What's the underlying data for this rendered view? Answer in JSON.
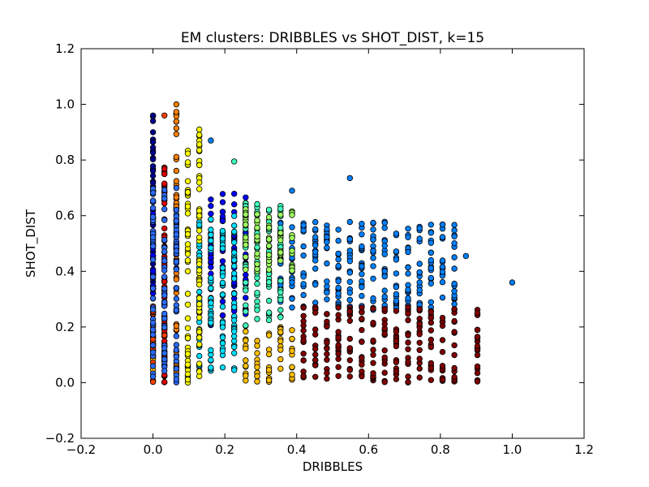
{
  "chart_data": {
    "type": "scatter",
    "title": "EM clusters: DRIBBLES vs SHOT_DIST, k=15",
    "xlabel": "DRIBBLES",
    "ylabel": "SHOT_DIST",
    "xlim": [
      -0.2,
      1.2
    ],
    "ylim": [
      -0.2,
      1.2
    ],
    "xticks": [
      "−0.2",
      "0.0",
      "0.2",
      "0.4",
      "0.6",
      "0.8",
      "1.0",
      "1.2"
    ],
    "yticks": [
      "−0.2",
      "0.0",
      "0.2",
      "0.4",
      "0.6",
      "0.8",
      "1.0",
      "1.2"
    ],
    "grid": false,
    "legend": "none",
    "cluster_colors": [
      "#00008f",
      "#0000ff",
      "#0080ff",
      "#00dfff",
      "#40ffbf",
      "#9fff60",
      "#ffff00",
      "#ffbf00",
      "#ff8000",
      "#ff4000",
      "#df0000",
      "#800000",
      "#2a6cff",
      "#a6ff59",
      "#0bbfff"
    ],
    "series": [
      {
        "cluster": 0,
        "color": "#00008f",
        "columns": [
          0.0
        ],
        "ymin": 0.22,
        "ymax": 0.96
      },
      {
        "cluster": 1,
        "color": "#0000ff",
        "columns": [
          0.0,
          0.161,
          0.194,
          0.226,
          0.258
        ],
        "ymin": 0.2,
        "ymax": 0.68
      },
      {
        "cluster": 2,
        "color": "#0080ff",
        "columns": [
          0.355,
          0.387,
          0.419,
          0.452,
          0.484,
          0.516,
          0.548,
          0.581,
          0.613,
          0.645,
          0.677,
          0.71,
          0.742,
          0.774,
          0.806,
          0.839
        ],
        "ymin": 0.26,
        "ymax": 0.58
      },
      {
        "cluster": 3,
        "color": "#00dfff",
        "columns": [
          0.129,
          0.161,
          0.194,
          0.226
        ],
        "ymin": 0.04,
        "ymax": 0.6
      },
      {
        "cluster": 4,
        "color": "#40ffbf",
        "columns": [
          0.258,
          0.29,
          0.323,
          0.355
        ],
        "ymin": 0.2,
        "ymax": 0.65
      },
      {
        "cluster": 5,
        "color": "#9fff60",
        "columns": [
          0.258,
          0.29,
          0.323,
          0.355,
          0.387
        ],
        "ymin": 0.4,
        "ymax": 0.63
      },
      {
        "cluster": 6,
        "color": "#ffff00",
        "columns": [
          0.097,
          0.129
        ],
        "ymin": 0.0,
        "ymax": 0.93
      },
      {
        "cluster": 7,
        "color": "#ffbf00",
        "columns": [
          0.0,
          0.258,
          0.29,
          0.323,
          0.355,
          0.387
        ],
        "ymin": 0.0,
        "ymax": 0.2
      },
      {
        "cluster": 8,
        "color": "#ff8000",
        "columns": [
          0.065
        ],
        "ymin": 0.0,
        "ymax": 1.0
      },
      {
        "cluster": 9,
        "color": "#ff4000",
        "columns": [
          0.0,
          0.032
        ],
        "ymin": 0.0,
        "ymax": 0.3
      },
      {
        "cluster": 10,
        "color": "#df0000",
        "columns": [
          0.032
        ],
        "ymin": 0.0,
        "ymax": 0.83
      },
      {
        "cluster": 11,
        "color": "#800000",
        "columns": [
          0.419,
          0.452,
          0.484,
          0.516,
          0.548,
          0.581,
          0.613,
          0.645,
          0.677,
          0.71,
          0.742,
          0.774,
          0.806,
          0.839,
          0.903
        ],
        "ymin": 0.0,
        "ymax": 0.28
      },
      {
        "cluster": 12,
        "color": "#2a6cff",
        "columns": [
          0.0,
          0.032,
          0.065
        ],
        "ymin": 0.0,
        "ymax": 0.7
      }
    ],
    "outliers": [
      {
        "x": 0.0,
        "y": 0.96,
        "color": "#00008f"
      },
      {
        "x": 0.032,
        "y": 0.96,
        "color": "#ff4000"
      },
      {
        "x": 0.065,
        "y": 1.0,
        "color": "#ff8000"
      },
      {
        "x": 0.161,
        "y": 0.87,
        "color": "#0080ff"
      },
      {
        "x": 0.226,
        "y": 0.795,
        "color": "#40ffbf"
      },
      {
        "x": 0.548,
        "y": 0.735,
        "color": "#0080ff"
      },
      {
        "x": 0.387,
        "y": 0.69,
        "color": "#0080ff"
      },
      {
        "x": 0.871,
        "y": 0.455,
        "color": "#0080ff"
      },
      {
        "x": 1.0,
        "y": 0.36,
        "color": "#0080ff"
      },
      {
        "x": 0.903,
        "y": 0.25,
        "color": "#800000"
      },
      {
        "x": 0.903,
        "y": 0.19,
        "color": "#800000"
      },
      {
        "x": 0.903,
        "y": 0.165,
        "color": "#800000"
      },
      {
        "x": 0.839,
        "y": 0.02,
        "color": "#800000"
      }
    ]
  }
}
